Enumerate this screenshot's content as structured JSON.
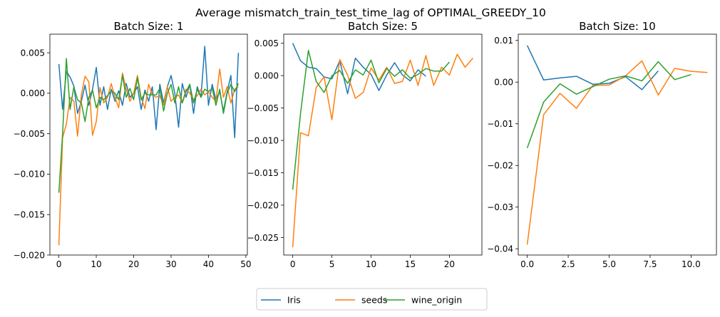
{
  "figure": {
    "suptitle": "Average mismatch_train_test_time_lag of OPTIMAL_GREEDY_10",
    "legend": {
      "placement": "bottom-center",
      "ncol": 3
    }
  },
  "chart_data": [
    {
      "type": "line",
      "title": "Batch Size: 1",
      "xlim": [
        -2.4,
        50.4
      ],
      "ylim": [
        -0.02,
        0.0073
      ],
      "xticks": [
        0,
        10,
        20,
        30,
        40,
        50
      ],
      "xtick_labels": [
        "0",
        "10",
        "20",
        "30",
        "40",
        "50"
      ],
      "yticks": [
        -0.02,
        -0.015,
        -0.01,
        -0.005,
        0.0,
        0.005
      ],
      "ytick_labels": [
        "−0.020",
        "−0.015",
        "−0.010",
        "−0.005",
        "0.000",
        "0.005"
      ],
      "grid": false,
      "series": [
        {
          "name": "Iris",
          "color": "#1f77b4",
          "x": [
            0,
            1,
            2,
            3,
            4,
            5,
            6,
            7,
            8,
            9,
            10,
            11,
            12,
            13,
            14,
            15,
            16,
            17,
            18,
            19,
            20,
            21,
            22,
            23,
            24,
            25,
            26,
            27,
            28,
            29,
            30,
            31,
            32,
            33,
            34,
            35,
            36,
            37,
            38,
            39,
            40,
            41,
            42,
            43,
            44,
            45,
            46,
            47,
            48
          ],
          "y": [
            0.0036,
            -0.002,
            0.0027,
            0.002,
            0.0009,
            -0.0025,
            -0.001,
            0.001,
            -0.0015,
            0.0005,
            0.0032,
            -0.0015,
            0.0008,
            -0.002,
            0.0005,
            -0.001,
            0.0003,
            -0.0015,
            0.0012,
            -0.0005,
            0.0,
            0.0008,
            -0.002,
            0.0004,
            -0.001,
            0.0008,
            -0.0045,
            0.0011,
            -0.0012,
            0.0008,
            0.0022,
            0.0,
            -0.0042,
            0.0012,
            -0.0005,
            0.0011,
            -0.0025,
            0.0008,
            -0.0005,
            0.0058,
            -0.0015,
            0.0011,
            -0.0008,
            0.0002,
            -0.0022,
            0.0002,
            0.0022,
            -0.0055,
            0.005
          ]
        },
        {
          "name": "seeds",
          "color": "#ff7f0e",
          "x": [
            0,
            1,
            2,
            3,
            4,
            5,
            6,
            7,
            8,
            9,
            10,
            11,
            12,
            13,
            14,
            15,
            16,
            17,
            18,
            19,
            20,
            21,
            22,
            23,
            24,
            25,
            26,
            27,
            28,
            29,
            30,
            31,
            32,
            33,
            34,
            35,
            36,
            37,
            38,
            39,
            40,
            41,
            42,
            43,
            44,
            45,
            46,
            47,
            48
          ],
          "y": [
            -0.0188,
            -0.0055,
            -0.0038,
            -0.0005,
            -0.001,
            -0.0053,
            -0.0002,
            0.0021,
            0.0014,
            -0.0052,
            -0.0035,
            0.0007,
            -0.0012,
            -0.0005,
            0.0012,
            -0.0005,
            -0.0018,
            0.0025,
            0.0005,
            -0.001,
            0.0,
            0.0022,
            -0.0005,
            -0.0019,
            0.0011,
            -0.0002,
            -0.0005,
            -0.0003,
            -0.0015,
            0.0008,
            -0.001,
            -0.0005,
            -0.0002,
            -0.0012,
            0.0005,
            0.0,
            -0.0008,
            -0.0003,
            0.0005,
            -0.0002,
            0.0002,
            -0.0005,
            -0.001,
            0.003,
            -0.0005,
            0.0008,
            -0.0012,
            0.0005,
            0.0008
          ]
        },
        {
          "name": "wine_origin",
          "color": "#2ca02c",
          "x": [
            0,
            1,
            2,
            3,
            4,
            5,
            6,
            7,
            8,
            9,
            10,
            11,
            12,
            13,
            14,
            15,
            16,
            17,
            18,
            19,
            20,
            21,
            22,
            23,
            24,
            25,
            26,
            27,
            28,
            29,
            30,
            31,
            32,
            33,
            34,
            35,
            36,
            37,
            38,
            39,
            40,
            41,
            42,
            43,
            44,
            45,
            46,
            47,
            48
          ],
          "y": [
            -0.0123,
            -0.005,
            0.0043,
            -0.002,
            0.0008,
            -0.0008,
            -0.0012,
            -0.0035,
            -0.0005,
            0.0004,
            -0.0018,
            -0.0005,
            -0.0008,
            -0.0003,
            0.0003,
            0.0,
            -0.0008,
            0.0022,
            -0.0005,
            0.0006,
            -0.0008,
            0.0019,
            -0.0008,
            0.0,
            -0.0002,
            -0.0002,
            -0.0002,
            0.0006,
            -0.0022,
            0.0,
            0.0011,
            -0.0012,
            0.0008,
            -0.0012,
            0.0002,
            0.0011,
            -0.0012,
            0.0005,
            -0.0005,
            0.0005,
            0.0002,
            0.0006,
            -0.0015,
            0.0005,
            -0.0025,
            0.0,
            0.0011,
            0.0002,
            0.0012
          ]
        }
      ]
    },
    {
      "type": "line",
      "title": "Batch Size: 5",
      "xlim": [
        -1.15,
        24.15
      ],
      "ylim": [
        -0.0277,
        0.0064
      ],
      "xticks": [
        0,
        5,
        10,
        15,
        20
      ],
      "xtick_labels": [
        "0",
        "5",
        "10",
        "15",
        "20"
      ],
      "yticks": [
        -0.025,
        -0.02,
        -0.015,
        -0.01,
        -0.005,
        0.0,
        0.005
      ],
      "ytick_labels": [
        "−0.025",
        "−0.020",
        "−0.015",
        "−0.010",
        "−0.005",
        "0.000",
        "0.005"
      ],
      "grid": false,
      "series": [
        {
          "name": "Iris",
          "color": "#1f77b4",
          "x": [
            0,
            1,
            2,
            3,
            4,
            5,
            6,
            7,
            8,
            9,
            10,
            11,
            12,
            13,
            14,
            15,
            16,
            17
          ],
          "y": [
            0.005,
            0.0023,
            0.0013,
            0.0011,
            -0.0002,
            -0.0005,
            0.0023,
            -0.0028,
            0.0027,
            0.0013,
            0.0002,
            -0.0023,
            0.0001,
            0.002,
            0.0001,
            -0.0008,
            0.0009,
            -0.0001
          ]
        },
        {
          "name": "seeds",
          "color": "#ff7f0e",
          "x": [
            0,
            1,
            2,
            3,
            4,
            5,
            6,
            7,
            8,
            9,
            10,
            11,
            12,
            13,
            14,
            15,
            16,
            17,
            18,
            19,
            20,
            21,
            22,
            23
          ],
          "y": [
            -0.0265,
            -0.0088,
            -0.0093,
            -0.0018,
            -0.0002,
            -0.0068,
            0.0025,
            0.0001,
            -0.0035,
            -0.0026,
            0.0012,
            -0.0007,
            0.0013,
            -0.0012,
            -0.0009,
            0.0024,
            -0.0015,
            0.0031,
            -0.0015,
            0.0013,
            0.0001,
            0.0033,
            0.0013,
            0.0027
          ]
        },
        {
          "name": "wine_origin",
          "color": "#2ca02c",
          "x": [
            0,
            1,
            2,
            3,
            4,
            5,
            6,
            7,
            8,
            9,
            10,
            11,
            12,
            13,
            14,
            15,
            16,
            17,
            18,
            19,
            20
          ],
          "y": [
            -0.0176,
            -0.0058,
            0.0039,
            -0.0009,
            -0.0026,
            0.0,
            0.0008,
            -0.0012,
            0.0009,
            0.0001,
            0.0024,
            -0.0011,
            0.0011,
            -0.0001,
            0.0009,
            -0.0004,
            0.0002,
            0.0011,
            0.0007,
            0.0007,
            0.0021
          ]
        }
      ]
    },
    {
      "type": "line",
      "title": "Batch Size: 10",
      "xlim": [
        -0.55,
        11.55
      ],
      "ylim": [
        -0.0415,
        0.0115
      ],
      "xticks": [
        0,
        2.5,
        5.0,
        7.5,
        10.0
      ],
      "xtick_labels": [
        "0.0",
        "2.5",
        "5.0",
        "7.5",
        "10.0"
      ],
      "yticks": [
        -0.04,
        -0.03,
        -0.02,
        -0.01,
        0.0,
        0.01
      ],
      "ytick_labels": [
        "−0.04",
        "−0.03",
        "−0.02",
        "−0.01",
        "0.00",
        "0.01"
      ],
      "grid": false,
      "series": [
        {
          "name": "Iris",
          "color": "#1f77b4",
          "x": [
            0,
            1,
            2,
            3,
            4,
            5,
            6,
            7,
            8
          ],
          "y": [
            0.0088,
            0.0005,
            0.001,
            0.0014,
            -0.0005,
            -0.0003,
            0.0013,
            -0.0018,
            0.0027
          ]
        },
        {
          "name": "seeds",
          "color": "#ff7f0e",
          "x": [
            0,
            1,
            2,
            3,
            4,
            5,
            6,
            7,
            8,
            9,
            10,
            11
          ],
          "y": [
            -0.039,
            -0.0078,
            -0.0027,
            -0.0063,
            -0.0008,
            -0.0007,
            0.0015,
            0.0051,
            -0.0031,
            0.0033,
            0.0026,
            0.0023
          ]
        },
        {
          "name": "wine_origin",
          "color": "#2ca02c",
          "x": [
            0,
            1,
            2,
            3,
            4,
            5,
            6,
            7,
            8,
            9,
            10
          ],
          "y": [
            -0.0158,
            -0.0048,
            -0.0004,
            -0.0029,
            -0.0011,
            0.0007,
            0.0015,
            0.0003,
            0.0049,
            0.0006,
            0.0018
          ]
        }
      ]
    }
  ]
}
